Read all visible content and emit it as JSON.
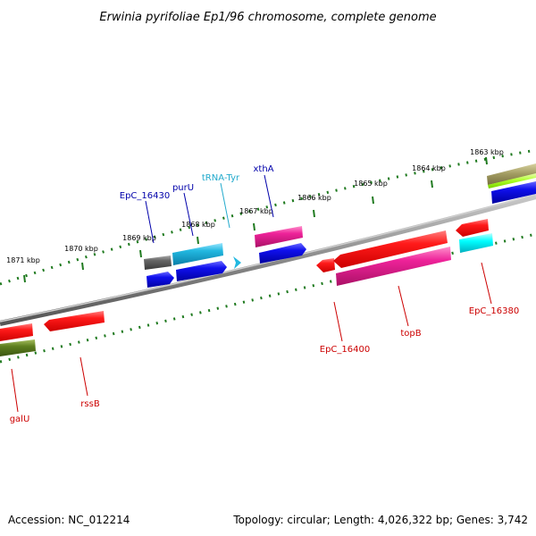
{
  "title": "Erwinia pyrifoliae Ep1/96 chromosome, complete genome",
  "footer": {
    "accession": "Accession: NC_012214",
    "summary": "Topology: circular; Length: 4,026,322 bp; Genes: 3,742"
  },
  "colors": {
    "backbone": "#8a8a8a",
    "tick_dots": "#1f7a1f",
    "label_top": "#0000aa",
    "label_trna": "#22aacc",
    "label_bottom": "#cc0000",
    "red": "#ff1a1a",
    "blue": "#1010ee",
    "cyan": "#22b8e0",
    "magenta": "#ee2299",
    "gray": "#666666",
    "olive": "#5e7f1f",
    "tan": "#a09a60",
    "lime": "#aaff22",
    "aqua": "#00ffff"
  },
  "kbp_marks": [
    "1863 kbp",
    "1864 kbp",
    "1865 kbp",
    "1866 kbp",
    "1867 kbp",
    "1868 kbp",
    "1869 kbp",
    "1870 kbp",
    "1871 kbp"
  ],
  "gene_labels": {
    "epc16430": "EpC_16430",
    "puru": "purU",
    "trna_tyr": "tRNA-Tyr",
    "xtha": "xthA",
    "galu": "galU",
    "rssb": "rssB",
    "epc16400": "EpC_16400",
    "topb": "topB",
    "epc16380": "EpC_16380"
  }
}
